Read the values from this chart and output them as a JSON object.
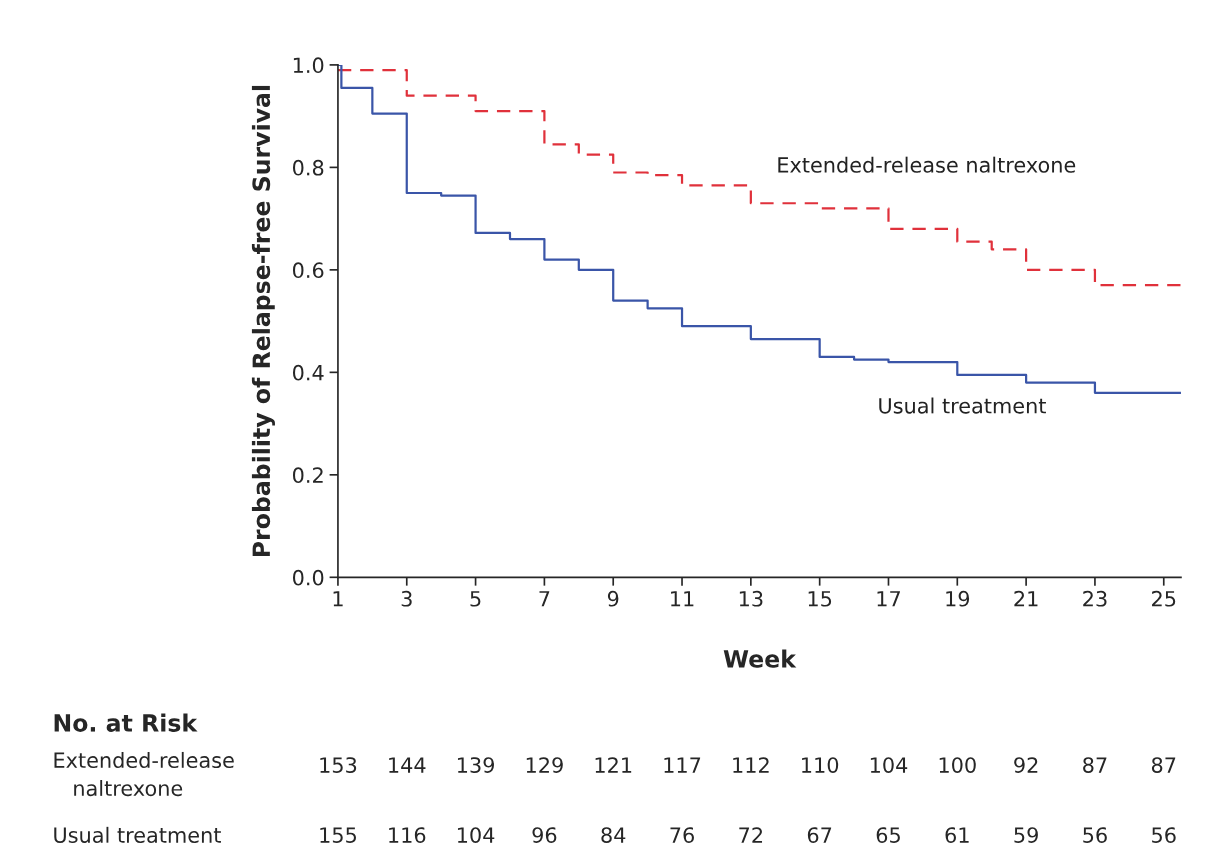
{
  "chart_data": {
    "type": "step",
    "xlabel": "Week",
    "ylabel": "Probability of Relapse-free Survival",
    "xlim": [
      1,
      25.5
    ],
    "ylim": [
      0,
      1.0
    ],
    "xticks": [
      1,
      3,
      5,
      7,
      9,
      11,
      13,
      15,
      17,
      19,
      21,
      23,
      25
    ],
    "yticks": [
      {
        "value": 0,
        "label": "0.0"
      },
      {
        "value": 0.2,
        "label": "0.2"
      },
      {
        "value": 0.4,
        "label": "0.4"
      },
      {
        "value": 0.6,
        "label": "0.6"
      },
      {
        "value": 0.8,
        "label": "0.8"
      },
      {
        "value": 1,
        "label": "1.0"
      }
    ],
    "grid": false,
    "legend": false,
    "series": [
      {
        "name": "Extended-release naltrexone",
        "color": "#e0313b",
        "line_style": "dashed",
        "x": [
          1,
          3,
          5,
          7,
          8,
          9,
          10,
          11,
          13,
          15,
          17,
          19,
          20,
          21,
          23,
          25.5
        ],
        "values": [
          0.99,
          0.94,
          0.91,
          0.845,
          0.825,
          0.79,
          0.785,
          0.765,
          0.73,
          0.72,
          0.68,
          0.655,
          0.64,
          0.6,
          0.57,
          0.57
        ]
      },
      {
        "name": "Usual treatment",
        "color": "#3a55a8",
        "line_style": "solid",
        "x": [
          1,
          1.1,
          2,
          3,
          4,
          5,
          6,
          7,
          8,
          9,
          10,
          11,
          13,
          15,
          16,
          17,
          19,
          21,
          23,
          25.5
        ],
        "values": [
          1.0,
          0.955,
          0.905,
          0.75,
          0.745,
          0.672,
          0.66,
          0.62,
          0.6,
          0.54,
          0.525,
          0.49,
          0.465,
          0.43,
          0.425,
          0.42,
          0.395,
          0.38,
          0.36,
          0.36
        ]
      }
    ],
    "annotations": [
      "No. at Risk",
      "Extended-release naltrexone",
      "153",
      "144",
      "139",
      "129",
      "121",
      "117",
      "112",
      "110",
      "104",
      "100",
      "92",
      "87",
      "87",
      "Usual treatment",
      "155",
      "116",
      "104",
      "96",
      "84",
      "76",
      "72",
      "67",
      "65",
      "61",
      "59",
      "56",
      "56"
    ]
  }
}
